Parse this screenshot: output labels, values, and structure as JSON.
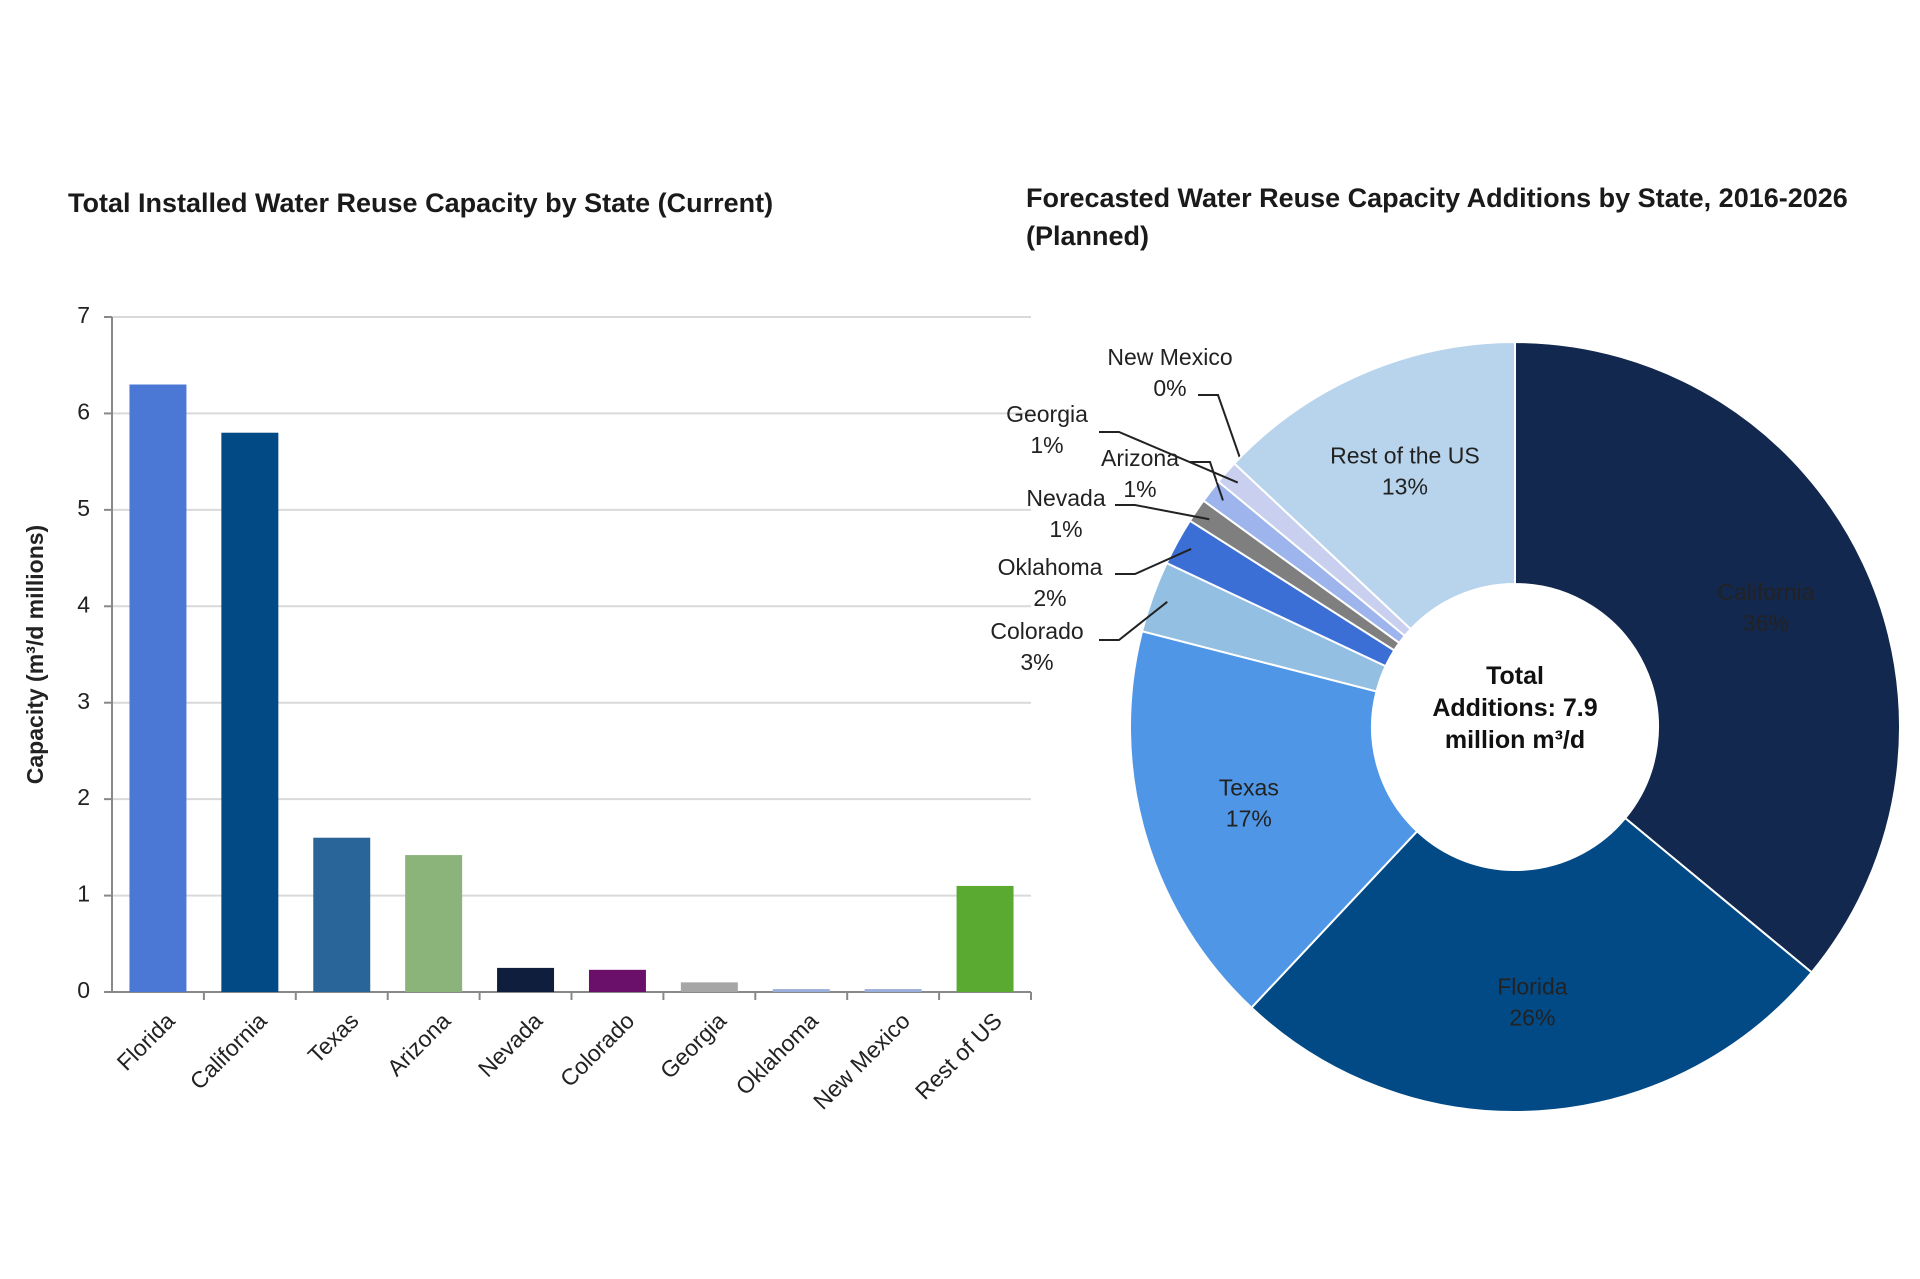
{
  "chart_data": [
    {
      "type": "bar",
      "title": "Total Installed Water Reuse Capacity by State (Current)",
      "y_label": "Capacity (m³/d millions)",
      "categories": [
        "Florida",
        "California",
        "Texas",
        "Arizona",
        "Nevada",
        "Colorado",
        "Georgia",
        "Oklahoma",
        "New Mexico",
        "Rest of US"
      ],
      "values": [
        6.3,
        5.8,
        1.6,
        1.42,
        0.25,
        0.23,
        0.1,
        0.03,
        0.03,
        1.1
      ],
      "colors": [
        "#4a78d4",
        "#024a86",
        "#2a6599",
        "#8ab47a",
        "#0f1e3c",
        "#6a0f6a",
        "#a6a6a6",
        "#9aaedb",
        "#9aaedb",
        "#5aaa32"
      ],
      "ylim": [
        0,
        7
      ],
      "yticks": [
        0,
        1,
        2,
        3,
        4,
        5,
        6,
        7
      ],
      "grid": true
    },
    {
      "type": "pie",
      "title": "Forecasted Water Reuse Capacity Additions by State, 2016-2026 (Planned)",
      "center_label": "Total Additions: 7.9 million m³/d",
      "categories": [
        "California",
        "Florida",
        "Texas",
        "Colorado",
        "Oklahoma",
        "Nevada",
        "Arizona",
        "Georgia",
        "New Mexico",
        "Rest of the US"
      ],
      "values": [
        36,
        26,
        17,
        3,
        2,
        1,
        1,
        1,
        0,
        13
      ],
      "value_labels": [
        "36%",
        "26%",
        "17%",
        "3%",
        "2%",
        "1%",
        "1%",
        "1%",
        "0%",
        "13%"
      ],
      "colors": [
        "#13284f",
        "#024a86",
        "#4f97e6",
        "#93bfe3",
        "#3c6fd6",
        "#7f7f7f",
        "#9db5ec",
        "#c9cfee",
        "#6aaa3a",
        "#b8d4ec"
      ]
    }
  ]
}
